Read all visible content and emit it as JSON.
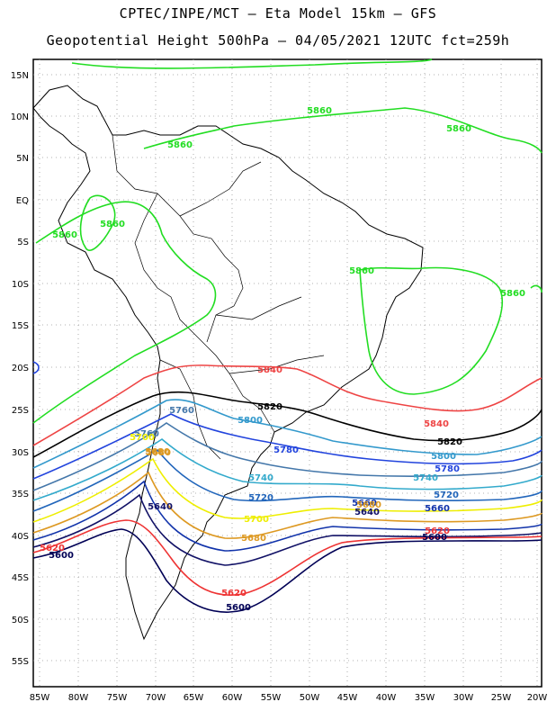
{
  "header": {
    "line1": "CPTEC/INPE/MCT –  Eta Model 15km – GFS",
    "line2": "Geopotential Height 500hPa – 04/05/2021 12UTC fct=259h"
  },
  "axes": {
    "lon_labels": [
      "85W",
      "80W",
      "75W",
      "70W",
      "65W",
      "60W",
      "55W",
      "50W",
      "45W",
      "40W",
      "35W",
      "30W",
      "25W",
      "20W"
    ],
    "lat_labels": [
      "15N",
      "10N",
      "5N",
      "EQ",
      "5S",
      "10S",
      "15S",
      "20S",
      "25S",
      "30S",
      "35S",
      "40S",
      "45S",
      "50S",
      "55S"
    ]
  },
  "contour_colors": {
    "5860": "#22dd22",
    "5840": "#ee4444",
    "5820": "#000000",
    "5800": "#3399cc",
    "5780": "#2244dd",
    "5760": "#4477aa",
    "5740": "#33aacc",
    "5720": "#2266bb",
    "5700": "#eeee00",
    "5680": "#dd9922",
    "5660": "#1133aa",
    "5640": "#111166",
    "5620": "#ee3333",
    "5600": "#000055"
  },
  "contour_labels": [
    {
      "text": "5860",
      "level": "5860"
    },
    {
      "text": "5860",
      "level": "5860"
    },
    {
      "text": "5860",
      "level": "5860"
    },
    {
      "text": "5860",
      "level": "5860"
    },
    {
      "text": "5860",
      "level": "5860"
    },
    {
      "text": "5860",
      "level": "5860"
    },
    {
      "text": "5860",
      "level": "5860"
    },
    {
      "text": "5840",
      "level": "5840"
    },
    {
      "text": "5840",
      "level": "5840"
    },
    {
      "text": "5820",
      "level": "5820"
    },
    {
      "text": "5820",
      "level": "5820"
    },
    {
      "text": "5760",
      "level": "5760"
    },
    {
      "text": "5800",
      "level": "5800"
    },
    {
      "text": "5800",
      "level": "5800"
    },
    {
      "text": "5780",
      "level": "5780"
    },
    {
      "text": "5780",
      "level": "5780"
    },
    {
      "text": "5760",
      "level": "5760"
    },
    {
      "text": "5740",
      "level": "5740"
    },
    {
      "text": "5740",
      "level": "5740"
    },
    {
      "text": "5720",
      "level": "5720"
    },
    {
      "text": "5720",
      "level": "5720"
    },
    {
      "text": "5700",
      "level": "5700"
    },
    {
      "text": "5700",
      "level": "5700"
    },
    {
      "text": "5680",
      "level": "5680"
    },
    {
      "text": "5680",
      "level": "5680"
    },
    {
      "text": "5660",
      "level": "5660"
    },
    {
      "text": "5680",
      "level": "5680"
    },
    {
      "text": "5660",
      "level": "5660"
    },
    {
      "text": "5640",
      "level": "5640"
    },
    {
      "text": "5640",
      "level": "5640"
    },
    {
      "text": "5620",
      "level": "5620"
    },
    {
      "text": "5620",
      "level": "5620"
    },
    {
      "text": "5620",
      "level": "5620"
    },
    {
      "text": "5600",
      "level": "5600"
    },
    {
      "text": "5600",
      "level": "5600"
    },
    {
      "text": "5600",
      "level": "5600"
    },
    {
      "text": "5680",
      "level": "5680"
    }
  ]
}
